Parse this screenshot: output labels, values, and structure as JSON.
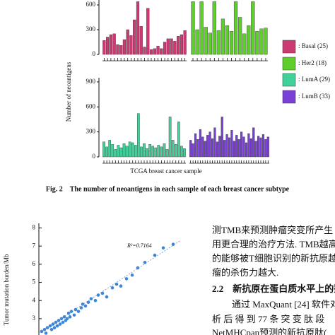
{
  "figure": {
    "ylabel": "Number of neoantigens",
    "xlabel": "TCGA breast cancer sample",
    "caption": "Fig. 2　The number of neoantigens in each sample of each breast cancer subtype"
  },
  "chart_data": [
    {
      "type": "bar",
      "name": ": Basal (25)",
      "color": "#cc3a73",
      "ylim": [
        0,
        660
      ],
      "yticks": [
        0,
        300,
        600
      ],
      "values": [
        170,
        210,
        240,
        250,
        120,
        110,
        180,
        300,
        230,
        420,
        640,
        340,
        90,
        560,
        60,
        70,
        100,
        70,
        150,
        190,
        190,
        160,
        220,
        240,
        290
      ]
    },
    {
      "type": "bar",
      "name": ": Her2 (18)",
      "color": "#5ecf2a",
      "ylim": [
        0,
        660
      ],
      "values": [
        640,
        300,
        640,
        330,
        260,
        640,
        290,
        430,
        350,
        280,
        640,
        450,
        250,
        350,
        640,
        280,
        310,
        320
      ]
    },
    {
      "type": "bar",
      "name": ": LumA (29)",
      "color": "#3fd39a",
      "ylim": [
        0,
        950
      ],
      "yticks": [
        0,
        300,
        600,
        900
      ],
      "values": [
        180,
        120,
        200,
        150,
        90,
        140,
        110,
        160,
        130,
        180,
        170,
        140,
        520,
        120,
        160,
        100,
        150,
        130,
        110,
        140,
        120,
        160,
        90,
        480,
        200,
        150,
        420,
        130,
        100
      ]
    },
    {
      "type": "bar",
      "name": ": LumB (33)",
      "color": "#7a3fd6",
      "ylim": [
        0,
        950
      ],
      "values": [
        200,
        160,
        280,
        210,
        330,
        240,
        190,
        260,
        300,
        220,
        350,
        180,
        250,
        480,
        200,
        270,
        230,
        320,
        190,
        260,
        210,
        300,
        240,
        170,
        280,
        220,
        350,
        190,
        250,
        230,
        270,
        210,
        240
      ]
    },
    {
      "type": "scatter",
      "ylabel": "Tumor mutation burden/Mb",
      "annotation": "R²=0.7164",
      "color": "#3f86d8",
      "xlim": [
        0,
        100
      ],
      "ylim": [
        2.1,
        8.1
      ],
      "yticks": [
        3,
        4,
        5,
        6,
        7,
        8
      ],
      "fit_line": {
        "x": [
          0,
          100
        ],
        "y": [
          2.2,
          7.3
        ]
      },
      "x": [
        2,
        4,
        5,
        6,
        8,
        9,
        10,
        11,
        12,
        13,
        14,
        15,
        16,
        17,
        18,
        19,
        20,
        21,
        22,
        23,
        25,
        26,
        28,
        30,
        31,
        33,
        35,
        37,
        40,
        42,
        45,
        48,
        52,
        55,
        58,
        62,
        66,
        70,
        75,
        82,
        88,
        95
      ],
      "y": [
        2.3,
        2.4,
        2.2,
        2.5,
        2.6,
        2.4,
        2.7,
        2.5,
        2.8,
        2.6,
        2.9,
        2.7,
        3.0,
        2.8,
        3.1,
        2.9,
        3.0,
        3.3,
        3.1,
        3.4,
        3.2,
        3.5,
        3.4,
        3.6,
        3.8,
        3.7,
        3.9,
        4.1,
        4.0,
        4.3,
        4.4,
        4.2,
        4.7,
        4.9,
        4.8,
        5.2,
        5.4,
        5.8,
        6.1,
        6.5,
        6.9,
        7.1
      ]
    }
  ],
  "body_text": [
    "测TMB来预测肿瘤突变所产生",
    "用更合理的治疗方法. TMB越高",
    "的能够被T细胞识别的新抗原越",
    "瘤的杀伤力越大.",
    "2.2　新抗原在蛋白质水平上的鉴",
    "通过 MaxQuant [24] 软件对质",
    "析 后 得 到 77 条 突 变 肽 段",
    "NetMHCpan预测的新抗原肽("
  ]
}
